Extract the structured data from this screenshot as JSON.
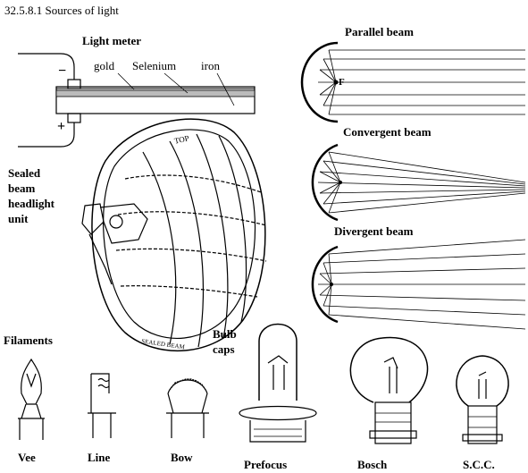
{
  "title": "32.5.8.1 Sources of light",
  "light_meter": {
    "heading": "Light meter",
    "layer_gold": "gold",
    "layer_selenium": "Selenium",
    "layer_iron": "iron",
    "terminal_minus": "−",
    "terminal_plus": "+"
  },
  "headlight": {
    "label_line1": "Sealed",
    "label_line2": "beam",
    "label_line3": "headlight",
    "label_line4": "unit",
    "top_mark": "TOP",
    "rim_mark": "SEALED BEAM"
  },
  "beams": {
    "parallel": "Parallel beam",
    "convergent": "Convergent beam",
    "divergent": "Divergent beam",
    "focus_mark": "F"
  },
  "filaments": {
    "heading": "Filaments",
    "vee": "Vee",
    "line": "Line",
    "bow": "Bow"
  },
  "bulb_caps": {
    "heading_line1": "Bulb",
    "heading_line2": "caps",
    "prefocus": "Prefocus",
    "bosch": "Bosch",
    "scc": "S.C.C."
  }
}
